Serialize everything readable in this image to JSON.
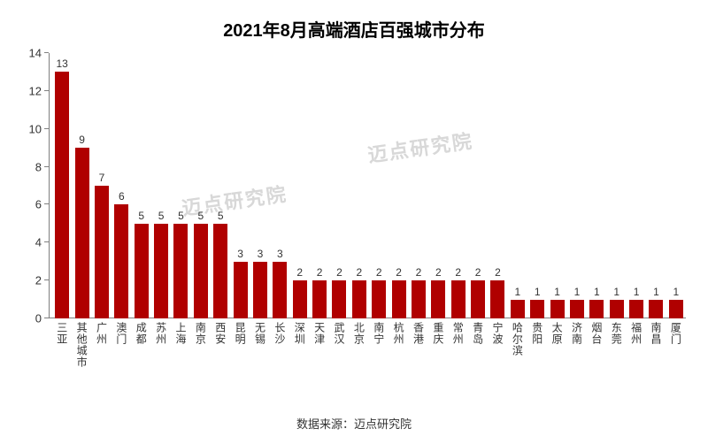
{
  "chart": {
    "type": "bar",
    "title": "2021年8月高端酒店百强城市分布",
    "title_fontsize": 20,
    "title_color": "#000000",
    "background_color": "#ffffff",
    "bar_color": "#b00000",
    "axis_color": "#808080",
    "label_color": "#333333",
    "label_fontsize": 12,
    "value_fontsize": 12,
    "ylim": [
      0,
      14
    ],
    "ytick_step": 2,
    "yticks": [
      0,
      2,
      4,
      6,
      8,
      10,
      12,
      14
    ],
    "categories": [
      "三亚",
      "其他城市",
      "广州",
      "澳门",
      "成都",
      "苏州",
      "上海",
      "南京",
      "西安",
      "昆明",
      "无锡",
      "长沙",
      "深圳",
      "天津",
      "武汉",
      "北京",
      "南宁",
      "杭州",
      "香港",
      "重庆",
      "常州",
      "青岛",
      "宁波",
      "哈尔滨",
      "贵阳",
      "太原",
      "济南",
      "烟台",
      "东莞",
      "福州",
      "南昌",
      "厦门"
    ],
    "values": [
      13,
      9,
      7,
      6,
      5,
      5,
      5,
      5,
      5,
      3,
      3,
      3,
      2,
      2,
      2,
      2,
      2,
      2,
      2,
      2,
      2,
      2,
      2,
      1,
      1,
      1,
      1,
      1,
      1,
      1,
      1,
      1
    ],
    "source_label": "数据来源：迈点研究院",
    "watermark_text": "迈点研究院"
  }
}
